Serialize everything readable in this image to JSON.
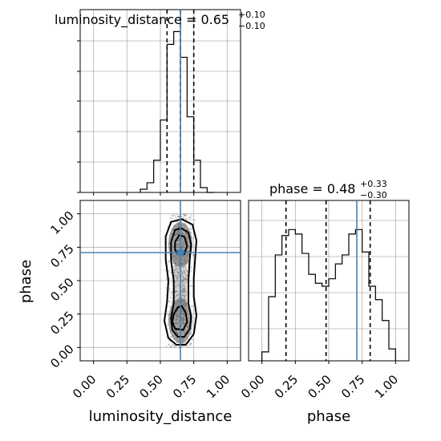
{
  "chart_data": {
    "type": "corner",
    "parameters": [
      "luminosity_distance",
      "phase"
    ],
    "truth": {
      "luminosity_distance": 0.65,
      "phase": 0.71
    },
    "colors": {
      "truth": "#4682b4",
      "hist": "#000000",
      "grid": "#b0b0b0",
      "quantile": "#000000"
    },
    "titles": {
      "luminosity_distance": {
        "base": "luminosity_distance = 0.65",
        "plus": "+0.10",
        "minus": "−0.10"
      },
      "phase": {
        "base": "phase = 0.48",
        "plus": "+0.33",
        "minus": "−0.30"
      }
    },
    "xlabels": {
      "luminosity_distance": "luminosity_distance",
      "phase": "phase"
    },
    "ylabel": "phase",
    "ticks": {
      "luminosity_distance": [
        "0.00",
        "0.25",
        "0.50",
        "0.75",
        "1.00"
      ],
      "phase": [
        "0.00",
        "0.25",
        "0.50",
        "0.75",
        "1.00"
      ]
    },
    "xlim": [
      -0.1,
      1.1
    ],
    "grid": true,
    "hist_luminosity_distance": {
      "bins": [
        0.35,
        0.4,
        0.45,
        0.5,
        0.55,
        0.6,
        0.65,
        0.7,
        0.75,
        0.8,
        0.85,
        0.9
      ],
      "density": [
        0.02,
        0.06,
        0.2,
        0.45,
        0.92,
        1.0,
        0.84,
        0.47,
        0.2,
        0.03,
        0.0
      ],
      "quantiles": [
        0.55,
        0.65,
        0.75
      ]
    },
    "hist_phase": {
      "bins": [
        0.0,
        0.05,
        0.1,
        0.15,
        0.2,
        0.25,
        0.3,
        0.35,
        0.4,
        0.45,
        0.5,
        0.55,
        0.6,
        0.65,
        0.7,
        0.75,
        0.8,
        0.85,
        0.9,
        0.95,
        1.0
      ],
      "density": [
        0.06,
        0.43,
        0.71,
        0.84,
        0.88,
        0.85,
        0.72,
        0.58,
        0.52,
        0.5,
        0.55,
        0.65,
        0.71,
        0.85,
        0.88,
        0.73,
        0.5,
        0.41,
        0.27,
        0.08
      ],
      "quantiles": [
        0.18,
        0.48,
        0.81
      ]
    },
    "scatter_2d": {
      "x_range": [
        0.5,
        0.8
      ],
      "y_range": [
        0.0,
        1.0
      ],
      "modes": [
        {
          "x": 0.65,
          "y": 0.2
        },
        {
          "x": 0.65,
          "y": 0.77
        }
      ],
      "contours": [
        [
          [
            0.63,
            0.08
          ],
          [
            0.68,
            0.08
          ],
          [
            0.72,
            0.14
          ],
          [
            0.73,
            0.23
          ],
          [
            0.71,
            0.33
          ],
          [
            0.71,
            0.5
          ],
          [
            0.72,
            0.66
          ],
          [
            0.73,
            0.77
          ],
          [
            0.71,
            0.86
          ],
          [
            0.66,
            0.89
          ],
          [
            0.61,
            0.88
          ],
          [
            0.58,
            0.79
          ],
          [
            0.58,
            0.65
          ],
          [
            0.6,
            0.5
          ],
          [
            0.6,
            0.33
          ],
          [
            0.58,
            0.22
          ],
          [
            0.59,
            0.13
          ]
        ],
        [
          [
            0.62,
            0.02
          ],
          [
            0.69,
            0.02
          ],
          [
            0.75,
            0.1
          ],
          [
            0.77,
            0.24
          ],
          [
            0.75,
            0.38
          ],
          [
            0.75,
            0.52
          ],
          [
            0.76,
            0.66
          ],
          [
            0.77,
            0.8
          ],
          [
            0.74,
            0.92
          ],
          [
            0.66,
            0.96
          ],
          [
            0.58,
            0.94
          ],
          [
            0.54,
            0.83
          ],
          [
            0.54,
            0.66
          ],
          [
            0.56,
            0.5
          ],
          [
            0.55,
            0.34
          ],
          [
            0.53,
            0.2
          ],
          [
            0.56,
            0.07
          ]
        ],
        [
          [
            0.61,
            0.14
          ],
          [
            0.67,
            0.13
          ],
          [
            0.7,
            0.19
          ],
          [
            0.69,
            0.26
          ],
          [
            0.66,
            0.31
          ],
          [
            0.63,
            0.3
          ],
          [
            0.6,
            0.25
          ],
          [
            0.59,
            0.19
          ]
        ],
        [
          [
            0.63,
            0.7
          ],
          [
            0.68,
            0.7
          ],
          [
            0.7,
            0.76
          ],
          [
            0.68,
            0.83
          ],
          [
            0.64,
            0.84
          ],
          [
            0.61,
            0.79
          ],
          [
            0.61,
            0.73
          ]
        ]
      ]
    }
  }
}
